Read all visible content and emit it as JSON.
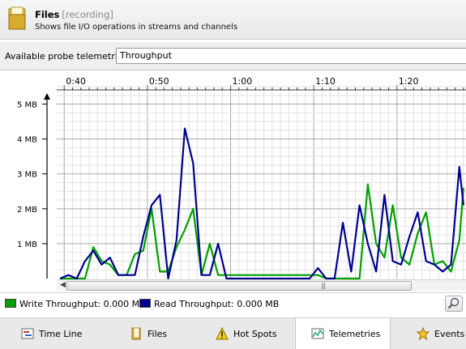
{
  "header": {
    "title": "Files",
    "title_tag": "[recording]",
    "subtitle": "Shows file I/O operations in streams and channels"
  },
  "probe": {
    "label": "Available probe telemetries:",
    "selected": "Throughput"
  },
  "chart_data": {
    "type": "line",
    "x_unit": "minutes",
    "x_ticks": [
      "0:40",
      "0:50",
      "1:00",
      "1:10",
      "1:20"
    ],
    "x_tick_values": [
      40,
      50,
      60,
      70,
      80
    ],
    "y_ticks": [
      "1 MB",
      "2 MB",
      "3 MB",
      "4 MB",
      "5 MB"
    ],
    "y_tick_values": [
      1,
      2,
      3,
      4,
      5
    ],
    "ylim": [
      0,
      5.5
    ],
    "xlim": [
      39.1,
      88.3
    ],
    "grid": true,
    "x": [
      39.5,
      40.5,
      41.5,
      42.5,
      43.5,
      44.5,
      45.5,
      46.5,
      47.5,
      48.5,
      49.5,
      50.5,
      51.5,
      52.5,
      53.5,
      54.5,
      55.5,
      56.5,
      57.5,
      58.5,
      59.5,
      60.5,
      61.5,
      62.5,
      63.5,
      64.5,
      65.5,
      66.5,
      67.5,
      68.5,
      69.5,
      70.5,
      71.5,
      72.5,
      73.5,
      74.5,
      75.5,
      76.5,
      77.5,
      78.5,
      79.5,
      80.5,
      81.5,
      82.5,
      83.5,
      84.5,
      85.5,
      86.5,
      87.5,
      88.0
    ],
    "series": [
      {
        "name": "Write Throughput",
        "color": "#00a000",
        "values": [
          0,
          0,
          0,
          0,
          0.9,
          0.5,
          0.4,
          0.1,
          0.1,
          0.7,
          0.8,
          2.0,
          0.2,
          0.2,
          0.9,
          1.4,
          2.0,
          0.1,
          1.0,
          0.1,
          0.1,
          0.1,
          0.1,
          0.1,
          0.1,
          0.1,
          0.1,
          0.1,
          0.1,
          0.1,
          0.1,
          0.1,
          0,
          0,
          0,
          0,
          0,
          2.7,
          1.0,
          0.6,
          2.1,
          0.6,
          0.4,
          1.3,
          1.9,
          0.4,
          0.5,
          0.2,
          1.1,
          2.6
        ]
      },
      {
        "name": "Read Throughput",
        "color": "#000090",
        "values": [
          0,
          0.1,
          0,
          0.5,
          0.8,
          0.4,
          0.6,
          0.1,
          0.1,
          0.1,
          1.2,
          2.1,
          2.4,
          0,
          1.1,
          4.3,
          3.3,
          0.1,
          0.1,
          1.0,
          0,
          0,
          0,
          0,
          0,
          0,
          0,
          0,
          0,
          0,
          0,
          0.3,
          0,
          0,
          1.6,
          0.2,
          2.1,
          1.0,
          0.2,
          2.4,
          0.5,
          0.4,
          1.2,
          1.9,
          0.5,
          0.4,
          0.2,
          0.4,
          3.2,
          2.1
        ]
      }
    ]
  },
  "legend": {
    "write_label": "Write Throughput: 0.000 MB",
    "write_color": "#00a000",
    "read_label": "Read Throughput: 0.000 MB",
    "read_color": "#000090"
  },
  "tabs": [
    {
      "label": "Time Line",
      "icon": "timeline-icon"
    },
    {
      "label": "Files",
      "icon": "files-icon"
    },
    {
      "label": "Hot Spots",
      "icon": "warning-icon"
    },
    {
      "label": "Telemetries",
      "icon": "telemetries-icon",
      "active": true
    },
    {
      "label": "Events",
      "icon": "star-icon"
    }
  ]
}
